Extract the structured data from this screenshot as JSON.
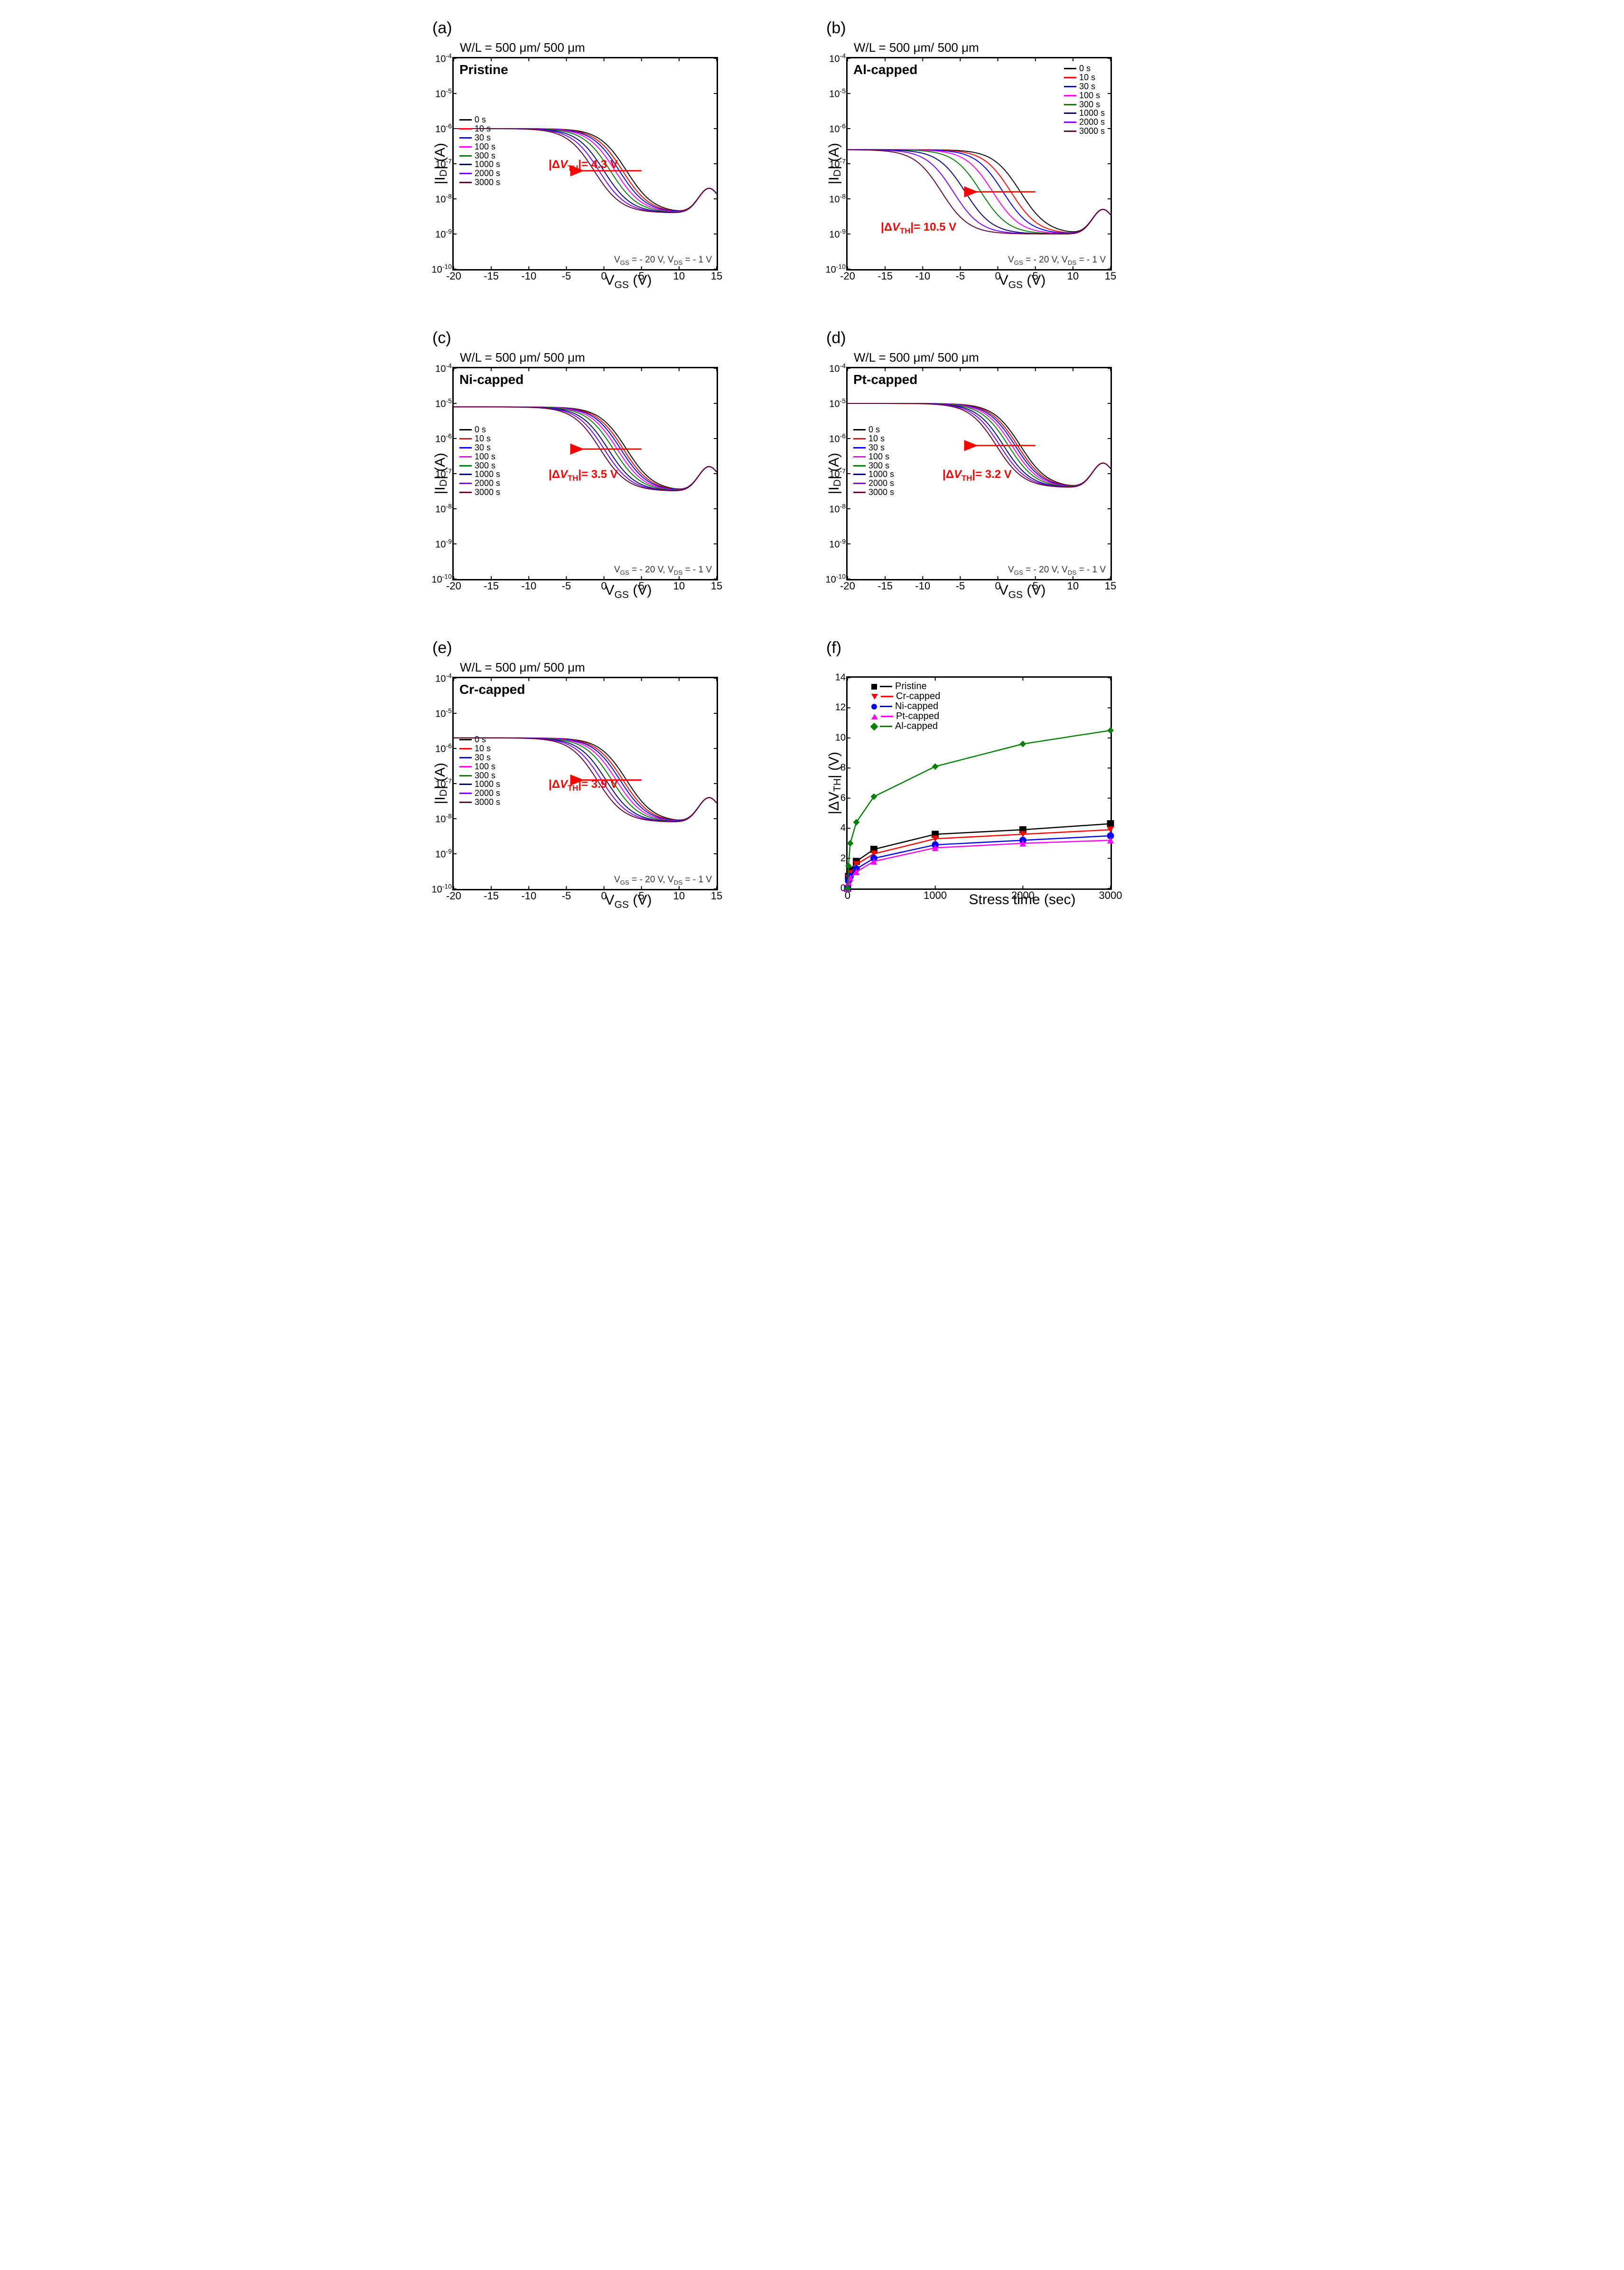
{
  "global": {
    "wl_note": "W/L = 500 μm/ 500 μm",
    "xlabel_ae": "V_GS (V)",
    "ylabel_ae": "|I_D| (A)",
    "xlabel_f": "Stress time (sec)",
    "ylabel_f": "|ΔV_TH| (V)",
    "cond_note": "V_GS = - 20 V, V_DS = - 1 V",
    "time_labels": [
      "0 s",
      "10 s",
      "30 s",
      "100 s",
      "300 s",
      "1000 s",
      "2000 s",
      "3000 s"
    ],
    "time_colors": [
      "#000000",
      "#ff0000",
      "#0000ff",
      "#ff00ff",
      "#008000",
      "#000080",
      "#8000ff",
      "#660033"
    ],
    "x_ae": {
      "min": -20,
      "max": 15,
      "ticks": [
        -20,
        -15,
        -10,
        -5,
        0,
        5,
        10,
        15
      ]
    },
    "y_ae": {
      "min_exp": -10,
      "max_exp": -4,
      "tick_exps": [
        -10,
        -9,
        -8,
        -7,
        -6,
        -5,
        -4
      ]
    },
    "f_x": {
      "min": 0,
      "max": 3000,
      "ticks": [
        0,
        1000,
        2000,
        3000
      ]
    },
    "f_y": {
      "min": 0,
      "max": 14,
      "ticks": [
        0,
        2,
        4,
        6,
        8,
        10,
        12,
        14
      ]
    }
  },
  "panels": {
    "a": {
      "label": "(a)",
      "title": "Pristine",
      "dvth": "|ΔV_TH|= 4.3 V",
      "top_exp": -6.0
    },
    "b": {
      "label": "(b)",
      "title": "Al-capped",
      "dvth": "|ΔV_TH|= 10.5 V",
      "top_exp": -6.6
    },
    "c": {
      "label": "(c)",
      "title": "Ni-capped",
      "dvth": "|ΔV_TH|= 3.5 V",
      "top_exp": -5.1
    },
    "d": {
      "label": "(d)",
      "title": "Pt-capped",
      "dvth": "|ΔV_TH|= 3.2 V",
      "top_exp": -5.0
    },
    "e": {
      "label": "(e)",
      "title": "Cr-capped",
      "dvth": "|ΔV_TH|= 3.9 V",
      "top_exp": -5.7
    }
  },
  "panel_f": {
    "label": "(f)",
    "series": [
      {
        "name": "Pristine",
        "color": "#000000",
        "marker": "square",
        "x": [
          0,
          10,
          30,
          100,
          300,
          1000,
          2000,
          3000
        ],
        "y": [
          0,
          0.8,
          1.2,
          1.8,
          2.6,
          3.6,
          3.9,
          4.3
        ]
      },
      {
        "name": "Cr-capped",
        "color": "#ff0000",
        "marker": "triangle-down",
        "x": [
          0,
          10,
          30,
          100,
          300,
          1000,
          2000,
          3000
        ],
        "y": [
          0,
          0.7,
          1.0,
          1.6,
          2.3,
          3.3,
          3.6,
          3.9
        ]
      },
      {
        "name": "Ni-capped",
        "color": "#0000ff",
        "marker": "circle",
        "x": [
          0,
          10,
          30,
          100,
          300,
          1000,
          2000,
          3000
        ],
        "y": [
          0,
          0.5,
          0.8,
          1.3,
          2.0,
          2.9,
          3.2,
          3.5
        ]
      },
      {
        "name": "Pt-capped",
        "color": "#ff00ff",
        "marker": "triangle-up",
        "x": [
          0,
          10,
          30,
          100,
          300,
          1000,
          2000,
          3000
        ],
        "y": [
          0,
          0.4,
          0.7,
          1.1,
          1.8,
          2.7,
          3.0,
          3.2
        ]
      },
      {
        "name": "Al-capped",
        "color": "#008000",
        "marker": "diamond",
        "x": [
          0,
          10,
          30,
          100,
          300,
          1000,
          2000,
          3000
        ],
        "y": [
          0,
          1.5,
          3.0,
          4.4,
          6.1,
          8.1,
          9.6,
          10.5
        ]
      }
    ]
  }
}
